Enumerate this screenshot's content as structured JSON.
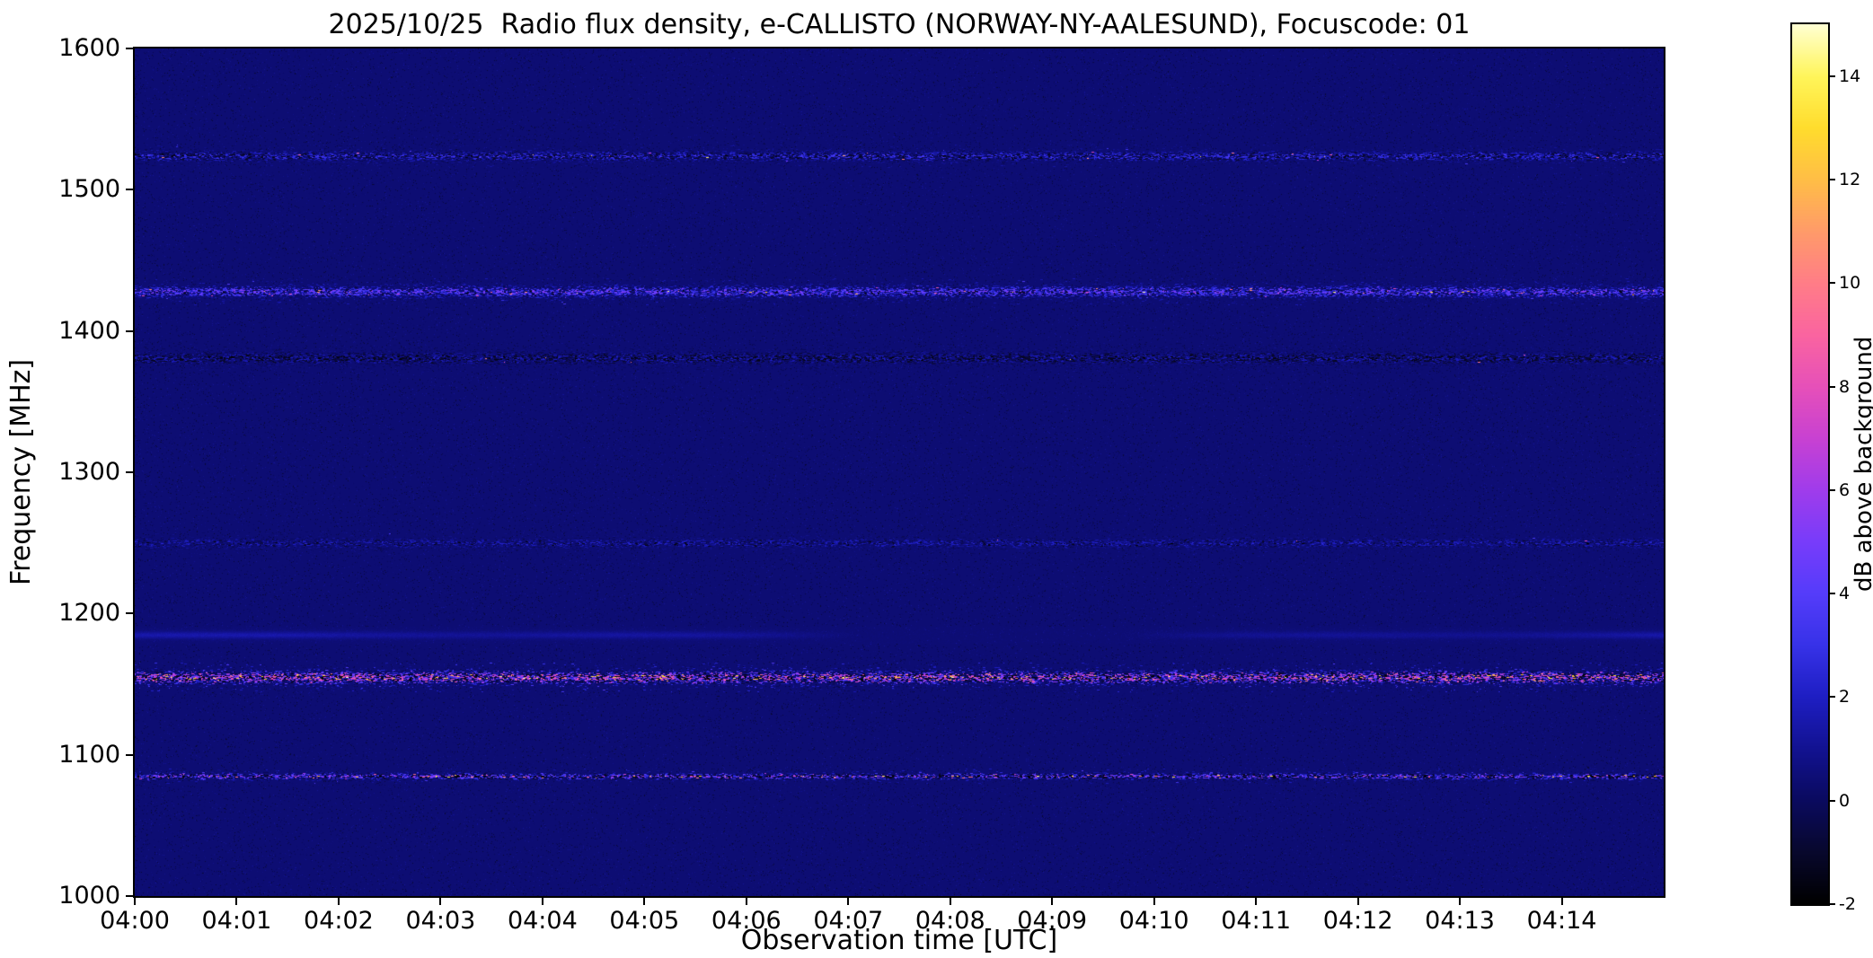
{
  "chart_data": {
    "type": "heatmap",
    "title": "2025/10/25  Radio flux density, e-CALLISTO (NORWAY-NY-AALESUND), Focuscode: 01",
    "xlabel": "Observation time [UTC]",
    "ylabel": "Frequency [MHz]",
    "x_tick_labels": [
      "04:00",
      "04:01",
      "04:02",
      "04:03",
      "04:04",
      "04:05",
      "04:06",
      "04:07",
      "04:08",
      "04:09",
      "04:10",
      "04:11",
      "04:12",
      "04:13",
      "04:14"
    ],
    "x_axis_minutes": 15,
    "y_tick_labels": [
      1000,
      1100,
      1200,
      1300,
      1400,
      1500,
      1600
    ],
    "ylim": [
      1000,
      1600
    ],
    "colorbar": {
      "label": "dB above background",
      "ticks": [
        -2,
        0,
        2,
        4,
        6,
        8,
        10,
        12,
        14
      ],
      "vmin": -2,
      "vmax": 15
    },
    "background_db": 0.4,
    "plot_bg_color": "#0a0a5f",
    "noise_bands": [
      {
        "freq_mhz": 1524,
        "half_width_mhz": 3.5,
        "mean_db": 1.2,
        "spread_db": 2.6,
        "density": 0.85,
        "sparkle": 0.004,
        "dark": 0.1
      },
      {
        "freq_mhz": 1428,
        "half_width_mhz": 4.0,
        "mean_db": 2.6,
        "spread_db": 3.2,
        "density": 0.92,
        "sparkle": 0.015,
        "dark": 0.06
      },
      {
        "freq_mhz": 1381,
        "half_width_mhz": 4.5,
        "mean_db": 0.3,
        "spread_db": 2.0,
        "density": 0.8,
        "sparkle": 0.001,
        "dark": 0.18
      },
      {
        "freq_mhz": 1250,
        "half_width_mhz": 3.5,
        "mean_db": 0.9,
        "spread_db": 1.6,
        "density": 0.7,
        "sparkle": 0.001,
        "dark": 0.1
      },
      {
        "freq_mhz": 1185,
        "half_width_mhz": 2.5,
        "mean_db": 1.5,
        "spread_db": 0.3,
        "density": 1.0,
        "smooth": true
      },
      {
        "freq_mhz": 1155,
        "half_width_mhz": 4.5,
        "mean_db": 3.2,
        "spread_db": 6.0,
        "density": 0.95,
        "sparkle": 0.1,
        "dark": 0.14
      },
      {
        "freq_mhz": 1085,
        "half_width_mhz": 2.2,
        "mean_db": 2.2,
        "spread_db": 4.5,
        "density": 0.88,
        "sparkle": 0.05,
        "dark": 0.12
      }
    ],
    "colormap_stops": [
      [
        0.0,
        [
          0,
          0,
          0
        ]
      ],
      [
        0.059,
        [
          8,
          8,
          45
        ]
      ],
      [
        0.118,
        [
          10,
          10,
          95
        ]
      ],
      [
        0.176,
        [
          18,
          18,
          145
        ]
      ],
      [
        0.235,
        [
          30,
          30,
          195
        ]
      ],
      [
        0.294,
        [
          55,
          50,
          232
        ]
      ],
      [
        0.353,
        [
          85,
          60,
          250
        ]
      ],
      [
        0.412,
        [
          120,
          60,
          250
        ]
      ],
      [
        0.471,
        [
          160,
          60,
          235
        ]
      ],
      [
        0.529,
        [
          200,
          65,
          210
        ]
      ],
      [
        0.588,
        [
          230,
          80,
          185
        ]
      ],
      [
        0.647,
        [
          250,
          100,
          160
        ]
      ],
      [
        0.706,
        [
          255,
          125,
          135
        ]
      ],
      [
        0.765,
        [
          255,
          155,
          105
        ]
      ],
      [
        0.824,
        [
          255,
          190,
          70
        ]
      ],
      [
        0.882,
        [
          255,
          220,
          45
        ]
      ],
      [
        0.941,
        [
          255,
          245,
          90
        ]
      ],
      [
        1.0,
        [
          255,
          255,
          210
        ]
      ]
    ]
  }
}
